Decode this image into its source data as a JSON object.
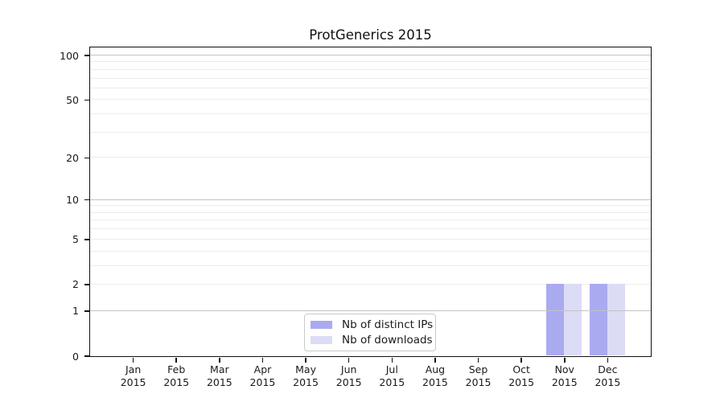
{
  "chart_data": {
    "type": "bar",
    "title": "ProtGenerics 2015",
    "categories": [
      "Jan",
      "Feb",
      "Mar",
      "Apr",
      "May",
      "Jun",
      "Jul",
      "Aug",
      "Sep",
      "Oct",
      "Nov",
      "Dec"
    ],
    "category_year": "2015",
    "series": [
      {
        "name": "Nb of distinct IPs",
        "color": "#aaaaf0",
        "values": [
          0,
          0,
          0,
          0,
          0,
          0,
          0,
          0,
          0,
          0,
          2,
          2
        ]
      },
      {
        "name": "Nb of downloads",
        "color": "#dcdcf6",
        "values": [
          0,
          0,
          0,
          0,
          0,
          0,
          0,
          0,
          0,
          0,
          2,
          2
        ]
      }
    ],
    "y_axis": {
      "scale": "log1p",
      "tick_labels": [
        0,
        1,
        2,
        5,
        10,
        20,
        50,
        100
      ],
      "major_gridlines": [
        1,
        10,
        100
      ],
      "minor_gridlines": [
        2,
        3,
        4,
        5,
        6,
        7,
        8,
        9,
        20,
        30,
        40,
        50,
        60,
        70,
        80,
        90
      ],
      "ylim": [
        0,
        100
      ]
    },
    "legend": {
      "position": "lower-center"
    },
    "grid": true
  },
  "colors": {
    "axis": "#111111",
    "major_grid": "#c3c3c3",
    "minor_grid": "#ececec",
    "text": "#1a1a1a",
    "legend_border": "#c9c9c9",
    "background": "#ffffff",
    "bar_distinct_ips": "#aaaaf0",
    "bar_downloads": "#dcdcf6"
  }
}
